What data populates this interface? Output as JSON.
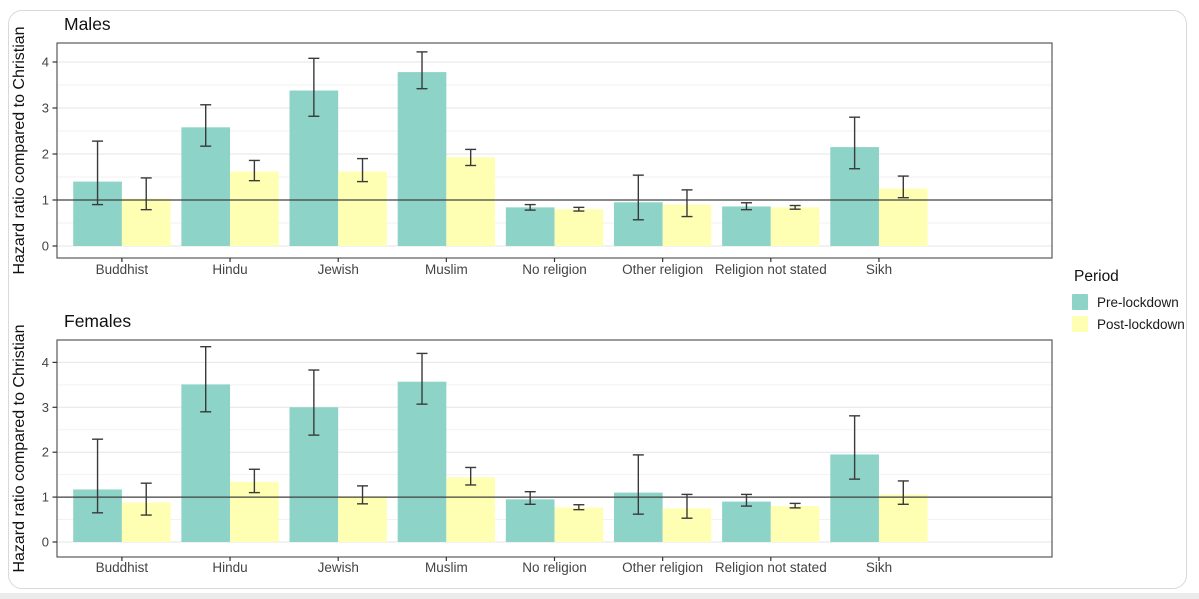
{
  "figure": {
    "background": "#ffffff",
    "card_border_color": "#d9d9d9",
    "bottom_strip_color": "#ebebeb",
    "grid_major_color": "#e5e5e5",
    "grid_minor_color": "#f2f2f2",
    "panel_border_color": "#595959",
    "error_bar_color": "#3a3a3a",
    "reference_line_color": "#404040",
    "axis_text_color": "#444444",
    "title_text_color": "#111111"
  },
  "legend": {
    "title": "Period",
    "position": "right",
    "items": [
      {
        "label": "Pre-lockdown",
        "color": "#8DD3C7"
      },
      {
        "label": "Post-lockdown",
        "color": "#FFFFB3"
      }
    ]
  },
  "chart_data": [
    {
      "type": "bar",
      "title": "Males",
      "ylabel": "Hazard ratio compared to Christian",
      "xlabel": "",
      "ylim": [
        0,
        4.45
      ],
      "yticks": [
        0,
        1,
        2,
        3,
        4
      ],
      "grid": true,
      "legend_position": "right",
      "reference_line_y": 1,
      "categories": [
        "Buddhist",
        "Hindu",
        "Jewish",
        "Muslim",
        "No religion",
        "Other religion",
        "Religion not stated",
        "Sikh"
      ],
      "series": [
        {
          "name": "Pre-lockdown",
          "color": "#8DD3C7",
          "values": [
            1.4,
            2.58,
            3.38,
            3.78,
            0.84,
            0.95,
            0.86,
            2.15
          ],
          "ci_low": [
            0.9,
            2.17,
            2.82,
            3.42,
            0.78,
            0.57,
            0.79,
            1.68
          ],
          "ci_high": [
            2.28,
            3.07,
            4.08,
            4.22,
            0.9,
            1.54,
            0.94,
            2.8
          ]
        },
        {
          "name": "Post-lockdown",
          "color": "#FFFFB3",
          "values": [
            1.03,
            1.62,
            1.62,
            1.93,
            0.8,
            0.9,
            0.84,
            1.25
          ],
          "ci_low": [
            0.79,
            1.42,
            1.4,
            1.75,
            0.76,
            0.64,
            0.8,
            1.05
          ],
          "ci_high": [
            1.48,
            1.86,
            1.9,
            2.1,
            0.84,
            1.22,
            0.88,
            1.52
          ]
        }
      ]
    },
    {
      "type": "bar",
      "title": "Females",
      "ylabel": "Hazard ratio compared to Christian",
      "xlabel": "",
      "ylim": [
        0,
        4.5
      ],
      "yticks": [
        0,
        1,
        2,
        3,
        4
      ],
      "grid": true,
      "legend_position": "right",
      "reference_line_y": 1,
      "categories": [
        "Buddhist",
        "Hindu",
        "Jewish",
        "Muslim",
        "No religion",
        "Other religion",
        "Religion not stated",
        "Sikh"
      ],
      "series": [
        {
          "name": "Pre-lockdown",
          "color": "#8DD3C7",
          "values": [
            1.17,
            3.51,
            3.0,
            3.57,
            0.95,
            1.1,
            0.9,
            1.95
          ],
          "ci_low": [
            0.65,
            2.9,
            2.38,
            3.07,
            0.84,
            0.62,
            0.8,
            1.4
          ],
          "ci_high": [
            2.29,
            4.35,
            3.83,
            4.2,
            1.12,
            1.94,
            1.06,
            2.81
          ]
        },
        {
          "name": "Post-lockdown",
          "color": "#FFFFB3",
          "values": [
            0.88,
            1.34,
            1.02,
            1.44,
            0.77,
            0.75,
            0.8,
            1.06
          ],
          "ci_low": [
            0.6,
            1.1,
            0.85,
            1.27,
            0.72,
            0.53,
            0.76,
            0.84
          ],
          "ci_high": [
            1.31,
            1.62,
            1.25,
            1.66,
            0.83,
            1.06,
            0.86,
            1.36
          ]
        }
      ]
    }
  ]
}
